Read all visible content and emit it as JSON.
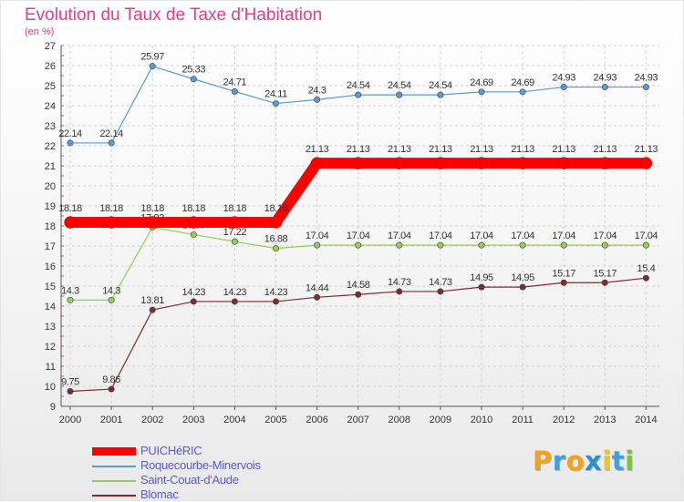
{
  "title": "Evolution du Taux de Taxe d'Habitation",
  "subtitle": "(en %)",
  "logo": {
    "letters": [
      "P",
      "r",
      "o",
      "x",
      "i",
      "t",
      "i"
    ],
    "colors": [
      "#f5a21a",
      "#3fa0d8",
      "#f5a21a",
      "#2a8fd0",
      "#f0c419",
      "#3fa0d8",
      "#7cc242"
    ]
  },
  "chart_data": {
    "type": "line",
    "title": "Evolution du Taux de Taxe d'Habitation",
    "ylabel": "(en %)",
    "xlabel": "",
    "ylim": [
      9,
      27
    ],
    "yticks": [
      "9",
      "10",
      "11",
      "12",
      "13",
      "14",
      "15",
      "16",
      "17",
      "18",
      "19",
      "20",
      "21",
      "22",
      "23",
      "24",
      "25",
      "26",
      "27"
    ],
    "x": [
      "2000",
      "2001",
      "2002",
      "2003",
      "2004",
      "2005",
      "2006",
      "2007",
      "2008",
      "2009",
      "2010",
      "2011",
      "2012",
      "2013",
      "2014"
    ],
    "grid": true,
    "legend_position": "bottom-left",
    "series": [
      {
        "name": "Roquecourbe-Minervois",
        "color": "#5b9bd5",
        "values": [
          22.14,
          22.14,
          25.97,
          25.33,
          24.71,
          24.11,
          24.3,
          24.54,
          24.54,
          24.54,
          24.69,
          24.69,
          24.93,
          24.93,
          24.93
        ],
        "labels": [
          "22.14",
          "22.14",
          "25.97",
          "25.33",
          "24.71",
          "24.11",
          "24.3",
          "24.54",
          "24.54",
          "24.54",
          "24.69",
          "24.69",
          "24.93",
          "24.93",
          "24.93"
        ]
      },
      {
        "name": "Saint-Couat-d'Aude",
        "color": "#92d050",
        "values": [
          14.3,
          14.3,
          17.93,
          17.57,
          17.22,
          16.88,
          17.04,
          17.04,
          17.04,
          17.04,
          17.04,
          17.04,
          17.04,
          17.04,
          17.04
        ],
        "labels": [
          "14.3",
          "14.3",
          "17.93",
          "17.57",
          "17.22",
          "16.88",
          "17.04",
          "17.04",
          "17.04",
          "17.04",
          "17.04",
          "17.04",
          "17.04",
          "17.04",
          "17.04"
        ]
      },
      {
        "name": "Blomac",
        "color": "#7b2c2c",
        "values": [
          9.75,
          9.86,
          13.81,
          14.23,
          14.23,
          14.23,
          14.44,
          14.58,
          14.73,
          14.73,
          14.95,
          14.95,
          15.17,
          15.17,
          15.4
        ],
        "labels": [
          "9.75",
          "9.86",
          "13.81",
          "14.23",
          "14.23",
          "14.23",
          "14.44",
          "14.58",
          "14.73",
          "14.73",
          "14.95",
          "14.95",
          "15.17",
          "15.17",
          "15.4"
        ]
      },
      {
        "name": "PUICHéRIC",
        "color": "#ff0000",
        "emphasis": true,
        "values": [
          18.18,
          18.18,
          18.18,
          18.18,
          18.18,
          18.18,
          21.13,
          21.13,
          21.13,
          21.13,
          21.13,
          21.13,
          21.13,
          21.13,
          21.13
        ],
        "labels": [
          "18.18",
          "18.18",
          "18.18",
          "18.18",
          "18.18",
          "18.18",
          "21.13",
          "21.13",
          "21.13",
          "21.13",
          "21.13",
          "21.13",
          "21.13",
          "21.13",
          "21.13"
        ]
      }
    ],
    "legend_order": [
      "PUICHéRIC",
      "Roquecourbe-Minervois",
      "Saint-Couat-d'Aude",
      "Blomac"
    ]
  }
}
